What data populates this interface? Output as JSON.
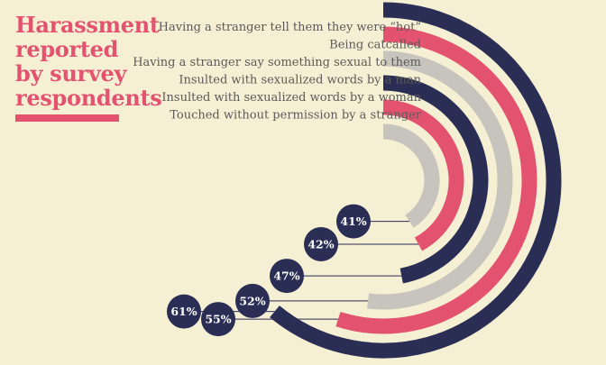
{
  "title": "Harassment reported by survey respondents",
  "colors": {
    "background": "#f5efd3",
    "accent": "#e35370",
    "navy": "#2a2e54",
    "grey": "#c7c3bd",
    "text": "#5b5a58"
  },
  "chart_data": {
    "type": "radial-bar",
    "title": "Harassment reported by survey respondents",
    "unit": "%",
    "categories": [
      "Having a stranger tell them they were “hot”",
      "Being catcalled",
      "Having a stranger say something sexual to them",
      "Insulted with sexualized words by a man",
      "Insulted with sexualized words by a woman",
      "Touched without permission by a stranger"
    ],
    "values": [
      61,
      55,
      52,
      47,
      42,
      41
    ],
    "value_labels": [
      "61%",
      "55%",
      "52%",
      "47%",
      "42%",
      "41%"
    ],
    "series_colors": [
      "navy",
      "accent",
      "grey",
      "navy",
      "accent",
      "grey"
    ],
    "legend": "category labels top-right, value badges along the left"
  }
}
